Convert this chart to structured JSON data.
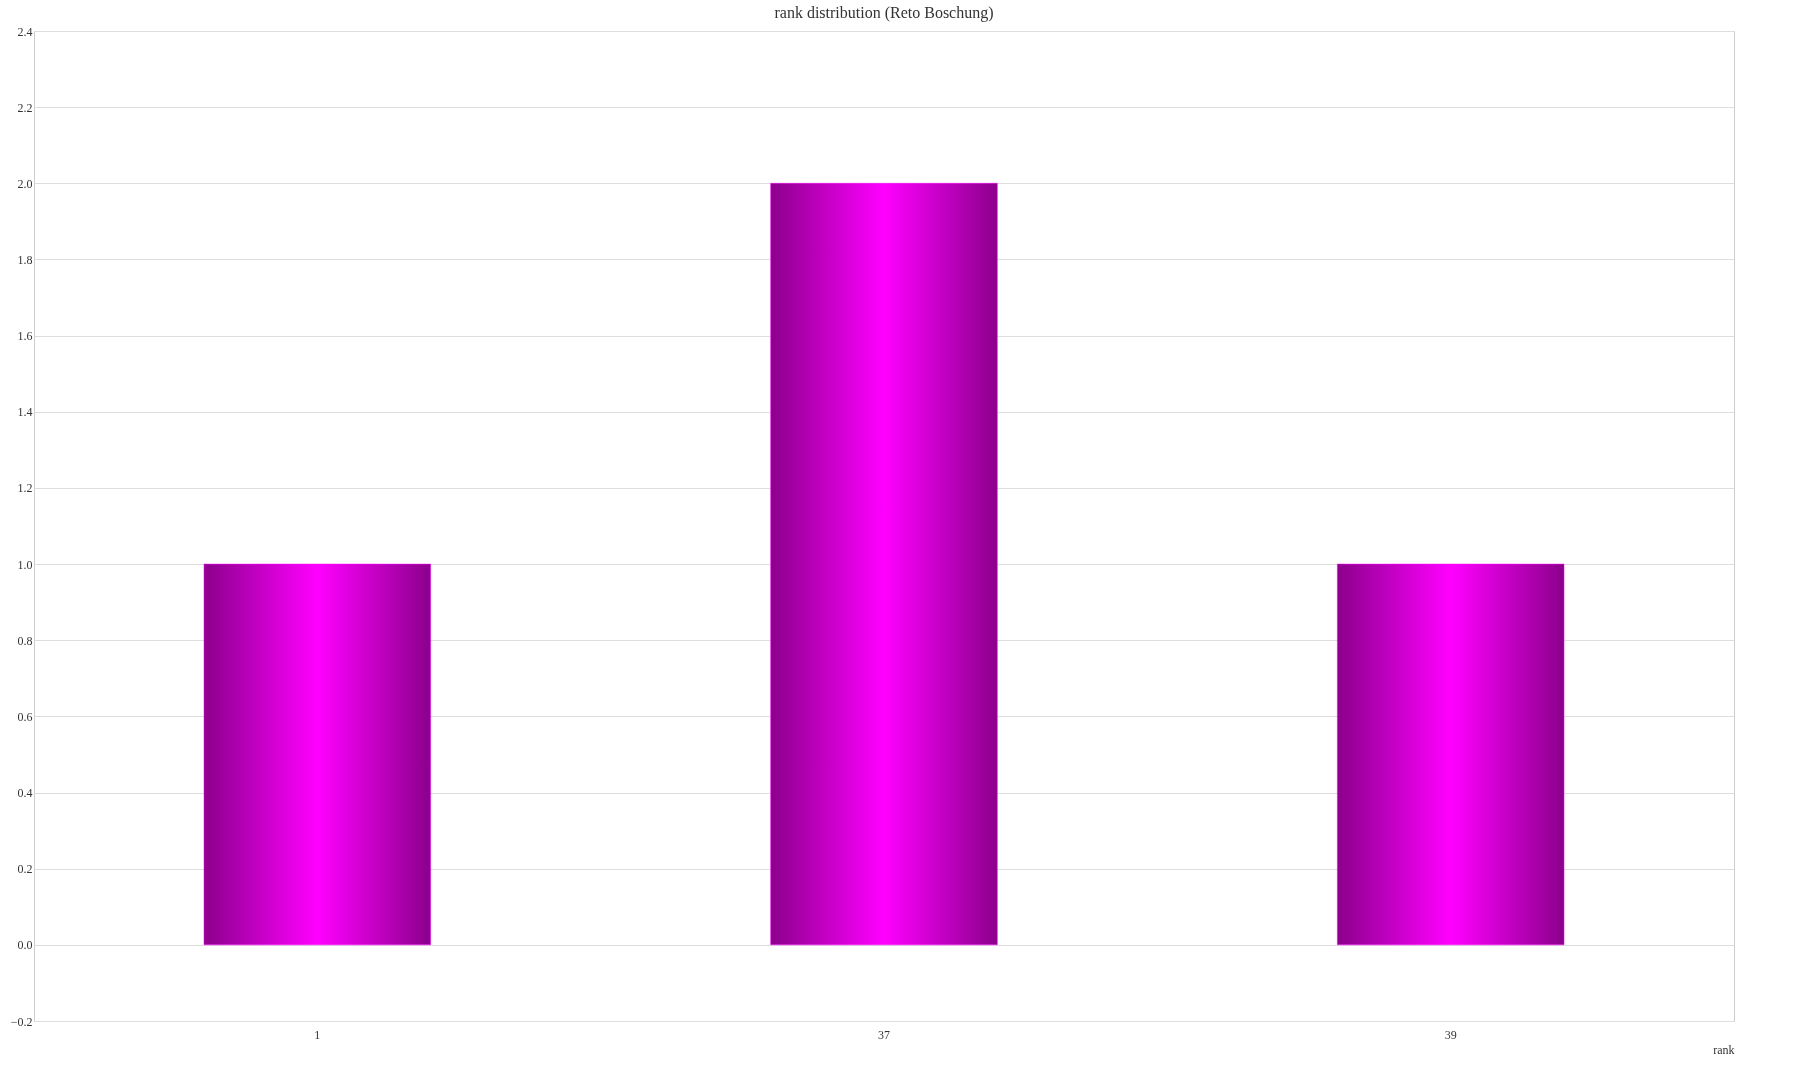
{
  "chart_data": {
    "type": "bar",
    "title": "rank distribution (Reto Boschung)",
    "xlabel": "rank",
    "categories": [
      "1",
      "37",
      "39"
    ],
    "values": [
      1,
      2,
      1
    ],
    "color": "#ff00ff",
    "ylim": [
      -0.2,
      2.4
    ],
    "yticks": [
      -0.2,
      {
        "value": 0,
        "label": "0.0"
      },
      0.2,
      0.4,
      0.6,
      0.8,
      {
        "value": 1,
        "label": "1.0"
      },
      1.2,
      1.4,
      1.6,
      1.8,
      {
        "value": 2,
        "label": "2.0"
      },
      2.2,
      2.4
    ],
    "grid": "y"
  }
}
